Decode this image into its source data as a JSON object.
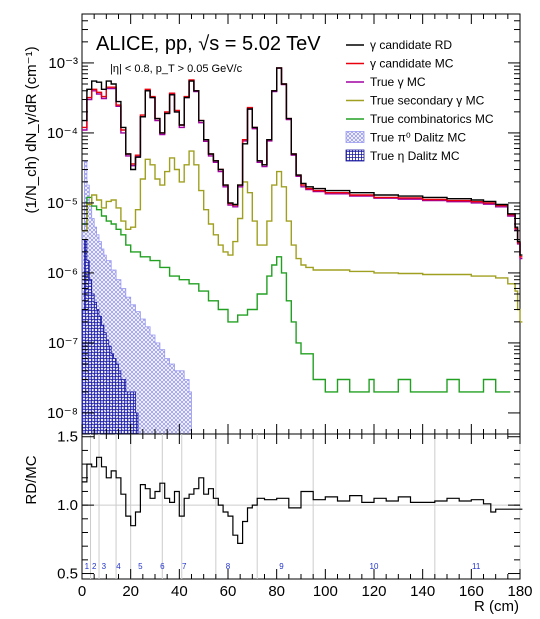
{
  "chart_data": [
    {
      "type": "line",
      "title": "ALICE, pp, √s = 5.02 TeV",
      "subtitle": "|η| < 0.8, p_T > 0.05 GeV/c",
      "ylabel": "(1/N_ch) dN_γ/dR (cm⁻¹)",
      "y_scale": "log",
      "xlim": [
        0,
        180
      ],
      "ylim": [
        5e-09,
        0.005
      ],
      "x_ticks": [
        "0",
        "20",
        "40",
        "60",
        "80",
        "100",
        "120",
        "140",
        "160",
        "180"
      ],
      "y_ticks": [
        "10⁻⁸",
        "10⁻⁷",
        "10⁻⁶",
        "10⁻⁵",
        "10⁻⁴",
        "10⁻³"
      ],
      "legend_position": "top-right",
      "series": [
        {
          "name": "γ candidate RD",
          "color": "#000000",
          "x": [
            0,
            2,
            4,
            6,
            8,
            10,
            12,
            14,
            16,
            18,
            20,
            22,
            24,
            26,
            28,
            30,
            32,
            34,
            36,
            38,
            40,
            42,
            44,
            46,
            48,
            50,
            52,
            54,
            56,
            58,
            60,
            62,
            64,
            66,
            68,
            70,
            72,
            74,
            76,
            78,
            80,
            82,
            84,
            86,
            88,
            90,
            92,
            95,
            100,
            110,
            120,
            130,
            140,
            150,
            160,
            165,
            170,
            175,
            178,
            179,
            180
          ],
          "y": [
            0.00015,
            0.00042,
            0.00055,
            0.00053,
            0.00042,
            0.00055,
            0.0005,
            0.00028,
            0.00012,
            5e-05,
            3e-05,
            4.5e-05,
            0.00017,
            0.0004,
            0.00032,
            0.00016,
            0.0001,
            0.00019,
            0.00035,
            0.0002,
            0.00013,
            0.00032,
            0.00055,
            0.0004,
            0.00015,
            8e-05,
            5e-05,
            4e-05,
            3e-05,
            1.8e-05,
            1e-05,
            9.5e-06,
            1.8e-05,
            7e-05,
            0.00022,
            0.00012,
            4e-05,
            3.5e-05,
            8e-05,
            0.0004,
            0.00085,
            0.0005,
            0.00016,
            5e-05,
            2.5e-05,
            1.9e-05,
            1.7e-05,
            1.6e-05,
            1.5e-05,
            1.4e-05,
            1.3e-05,
            1.25e-05,
            1.2e-05,
            1.15e-05,
            1.1e-05,
            1.05e-05,
            9.5e-06,
            7e-06,
            4.5e-06,
            2.8e-06,
            1.8e-06
          ]
        },
        {
          "name": "γ candidate MC",
          "color": "#e8000c",
          "x": [
            0,
            2,
            4,
            6,
            8,
            10,
            12,
            14,
            16,
            18,
            20,
            22,
            24,
            26,
            28,
            30,
            32,
            34,
            36,
            38,
            40,
            42,
            44,
            46,
            48,
            50,
            52,
            54,
            56,
            58,
            60,
            62,
            64,
            66,
            68,
            70,
            72,
            74,
            76,
            78,
            80,
            82,
            84,
            86,
            88,
            90,
            92,
            95,
            100,
            110,
            120,
            130,
            140,
            150,
            160,
            165,
            170,
            175,
            178,
            179,
            180
          ],
          "y": [
            0.00012,
            0.00032,
            0.00042,
            0.00038,
            0.00033,
            0.00045,
            0.00045,
            0.00025,
            0.00011,
            5e-05,
            3.6e-05,
            4.8e-05,
            0.00018,
            0.00042,
            0.00033,
            0.00016,
            0.0001,
            0.0002,
            0.00037,
            0.00021,
            0.00013,
            0.00033,
            0.00057,
            0.0004,
            0.00015,
            8e-05,
            5e-05,
            4e-05,
            3e-05,
            1.8e-05,
            9.8e-06,
            9.3e-06,
            1.8e-05,
            8e-05,
            0.00023,
            0.00012,
            4e-05,
            3.5e-05,
            8e-05,
            0.0004,
            0.00085,
            0.0005,
            0.00016,
            5e-05,
            2.5e-05,
            1.8e-05,
            1.6e-05,
            1.5e-05,
            1.4e-05,
            1.3e-05,
            1.2e-05,
            1.18e-05,
            1.12e-05,
            1.08e-05,
            1.04e-05,
            1e-05,
            9.2e-06,
            6.8e-06,
            4.3e-06,
            2.7e-06,
            1.7e-06
          ]
        },
        {
          "name": "True γ MC",
          "color": "#a000a0",
          "x": [
            0,
            2,
            4,
            6,
            8,
            10,
            12,
            14,
            16,
            18,
            20,
            22,
            24,
            26,
            28,
            30,
            32,
            34,
            36,
            38,
            40,
            42,
            44,
            46,
            48,
            50,
            52,
            54,
            56,
            58,
            60,
            62,
            64,
            66,
            68,
            70,
            72,
            74,
            76,
            78,
            80,
            82,
            84,
            86,
            88,
            90,
            92,
            95,
            100,
            110,
            120,
            130,
            140,
            150,
            160,
            165,
            170,
            175,
            178,
            179,
            180
          ],
          "y": [
            0.00011,
            0.0003,
            0.0004,
            0.00036,
            0.00031,
            0.00043,
            0.00043,
            0.00024,
            0.0001,
            4.7e-05,
            3.4e-05,
            4.6e-05,
            0.00017,
            0.0004,
            0.00032,
            0.00015,
            9.5e-05,
            0.00019,
            0.00036,
            0.0002,
            0.00012,
            0.00032,
            0.00056,
            0.00039,
            0.00014,
            7.6e-05,
            4.7e-05,
            3.8e-05,
            2.8e-05,
            1.7e-05,
            9.3e-06,
            8.8e-06,
            1.7e-05,
            7.7e-05,
            0.00022,
            0.000115,
            3.8e-05,
            3.3e-05,
            7.7e-05,
            0.00039,
            0.00084,
            0.00049,
            0.000155,
            4.8e-05,
            2.4e-05,
            1.7e-05,
            1.55e-05,
            1.45e-05,
            1.35e-05,
            1.25e-05,
            1.17e-05,
            1.13e-05,
            1.08e-05,
            1.04e-05,
            1e-05,
            9.6e-06,
            8.8e-06,
            6.5e-06,
            4.1e-06,
            2.6e-06,
            1.6e-06
          ]
        },
        {
          "name": "True secondary γ MC",
          "color": "#a0a020",
          "x": [
            0,
            2,
            4,
            6,
            8,
            10,
            12,
            14,
            16,
            18,
            20,
            22,
            24,
            26,
            28,
            30,
            32,
            34,
            36,
            38,
            40,
            42,
            44,
            46,
            48,
            50,
            52,
            54,
            56,
            58,
            60,
            62,
            64,
            66,
            68,
            70,
            72,
            74,
            76,
            78,
            80,
            82,
            84,
            86,
            88,
            90,
            92,
            95,
            100,
            110,
            120,
            130,
            140,
            150,
            160,
            170,
            175,
            178,
            179,
            180
          ],
          "y": [
            4e-06,
            9.5e-06,
            1.3e-05,
            1.1e-05,
            8.5e-06,
            1.05e-05,
            1.1e-05,
            8.5e-06,
            5.5e-06,
            4.2e-06,
            4.5e-06,
            8e-06,
            2.2e-05,
            4.2e-05,
            3.5e-05,
            2.2e-05,
            1.8e-05,
            2.8e-05,
            4.4e-05,
            3e-05,
            2e-05,
            3.5e-05,
            5.5e-05,
            3.5e-05,
            1.5e-05,
            8e-06,
            5e-06,
            3.5e-06,
            2.5e-06,
            2e-06,
            1.8e-06,
            2.8e-06,
            6e-06,
            2e-05,
            1.4e-05,
            5.5e-06,
            2.5e-06,
            2.5e-06,
            5.5e-06,
            1.8e-05,
            2.8e-05,
            1.7e-05,
            5.5e-06,
            2.5e-06,
            1.6e-06,
            1.3e-06,
            1.2e-06,
            1.1e-06,
            1.1e-06,
            1.05e-06,
            1e-06,
            9.8e-07,
            9.5e-07,
            9.5e-07,
            9e-07,
            8.5e-07,
            7e-07,
            5.5e-07,
            3e-07,
            2e-07
          ]
        },
        {
          "name": "True combinatorics MC",
          "color": "#22a022",
          "x": [
            0,
            2,
            4,
            6,
            8,
            10,
            12,
            14,
            16,
            18,
            20,
            24,
            28,
            32,
            36,
            40,
            44,
            48,
            52,
            56,
            60,
            64,
            68,
            72,
            76,
            78,
            80,
            82,
            84,
            86,
            88,
            90,
            95,
            100,
            105,
            110,
            115,
            118,
            120,
            125,
            130,
            135,
            140,
            145,
            150,
            155,
            160,
            165,
            170,
            175
          ],
          "y": [
            5e-06,
            1.2e-05,
            9e-06,
            8e-06,
            6.5e-06,
            5.5e-06,
            5e-06,
            4.2e-06,
            3.5e-06,
            2.5e-06,
            2e-06,
            1.7e-06,
            1.5e-06,
            1.2e-06,
            9e-07,
            8e-07,
            7e-07,
            5.5e-07,
            4e-07,
            3e-07,
            2e-07,
            2.5e-07,
            3e-07,
            5e-07,
            9e-07,
            1.3e-06,
            1.7e-06,
            1e-06,
            4e-07,
            2e-07,
            1e-07,
            7e-08,
            3e-08,
            2e-08,
            3e-08,
            2e-08,
            2e-08,
            3e-08,
            2e-08,
            2e-08,
            3e-08,
            2e-08,
            2e-08,
            2e-08,
            3e-08,
            2e-08,
            2e-08,
            3e-08,
            2e-08,
            2e-08
          ]
        },
        {
          "name": "True π⁰ Dalitz MC",
          "color": "#9999ee",
          "x": [
            0,
            1,
            2,
            3,
            4,
            5,
            6,
            7,
            8,
            9,
            10,
            12,
            14,
            16,
            18,
            20,
            22,
            24,
            26,
            28,
            30,
            32,
            34,
            36,
            38,
            40,
            42,
            44
          ],
          "y": [
            4e-06,
            4e-05,
            1.8e-05,
            9e-06,
            6e-06,
            4.5e-06,
            3.5e-06,
            2.8e-06,
            2.2e-06,
            1.8e-06,
            1.5e-06,
            1.1e-06,
            8e-07,
            6e-07,
            4.5e-07,
            3.5e-07,
            2.8e-07,
            2.2e-07,
            1.7e-07,
            1.3e-07,
            1e-07,
            8e-08,
            6e-08,
            5e-08,
            4e-08,
            4e-08,
            3e-08,
            2e-08
          ]
        },
        {
          "name": "True η Dalitz MC",
          "color": "#1a1aa0",
          "x": [
            0,
            1,
            2,
            3,
            4,
            5,
            6,
            7,
            8,
            9,
            10,
            11,
            12,
            13,
            14,
            15,
            16,
            18,
            20,
            22
          ],
          "y": [
            3e-07,
            3e-06,
            1.5e-06,
            8e-07,
            5e-07,
            3.8e-07,
            3e-07,
            2.4e-07,
            1.8e-07,
            1.4e-07,
            1.1e-07,
            9e-08,
            7e-08,
            6e-08,
            5e-08,
            4e-08,
            3e-08,
            2e-08,
            2e-08,
            1e-08
          ]
        }
      ]
    },
    {
      "type": "line",
      "ylabel": "RD/MC",
      "xlabel": "R (cm)",
      "xlim": [
        0,
        180
      ],
      "ylim": [
        0.46,
        1.52
      ],
      "x_ticks": [
        "0",
        "20",
        "40",
        "60",
        "80",
        "100",
        "120",
        "140",
        "160",
        "180"
      ],
      "y_ticks": [
        "0.5",
        "1.0",
        "1.5"
      ],
      "reference_line": 1.0,
      "region_boundaries": [
        3.5,
        7,
        14,
        20,
        33,
        41,
        55,
        72,
        95,
        145,
        180
      ],
      "region_labels": [
        {
          "x": 2,
          "label": "1"
        },
        {
          "x": 5,
          "label": "2"
        },
        {
          "x": 9,
          "label": "3"
        },
        {
          "x": 15,
          "label": "4"
        },
        {
          "x": 24,
          "label": "5"
        },
        {
          "x": 33,
          "label": "6"
        },
        {
          "x": 42,
          "label": "7"
        },
        {
          "x": 60,
          "label": "8"
        },
        {
          "x": 82,
          "label": "9"
        },
        {
          "x": 120,
          "label": "10"
        },
        {
          "x": 162,
          "label": "11"
        }
      ],
      "series": [
        {
          "name": "RD/MC",
          "color": "#000000",
          "x": [
            0,
            2,
            4,
            6,
            8,
            10,
            12,
            14,
            16,
            18,
            20,
            22,
            24,
            26,
            28,
            30,
            32,
            34,
            36,
            38,
            40,
            42,
            44,
            46,
            48,
            50,
            52,
            54,
            56,
            58,
            60,
            62,
            64,
            66,
            68,
            70,
            72,
            75,
            80,
            85,
            90,
            95,
            100,
            105,
            110,
            115,
            120,
            125,
            130,
            135,
            140,
            145,
            150,
            155,
            160,
            165,
            168,
            170,
            175,
            180
          ],
          "y": [
            1.17,
            1.3,
            1.28,
            1.35,
            1.28,
            1.2,
            1.25,
            1.2,
            1.08,
            0.92,
            0.85,
            0.95,
            1.15,
            1.12,
            1.05,
            1.1,
            1.16,
            1.05,
            1.02,
            1.1,
            0.92,
            1.05,
            1.08,
            1.12,
            1.2,
            1.08,
            1.12,
            1.05,
            1.0,
            0.95,
            0.92,
            0.78,
            0.72,
            0.88,
            0.98,
            1.0,
            1.05,
            1.04,
            1.05,
            0.98,
            1.1,
            1.04,
            1.06,
            1.03,
            1.07,
            1.02,
            1.05,
            1.03,
            1.06,
            1.02,
            1.02,
            1.03,
            1.05,
            1.03,
            1.04,
            1.01,
            0.95,
            0.97,
            0.97,
            0.97
          ]
        }
      ]
    }
  ]
}
